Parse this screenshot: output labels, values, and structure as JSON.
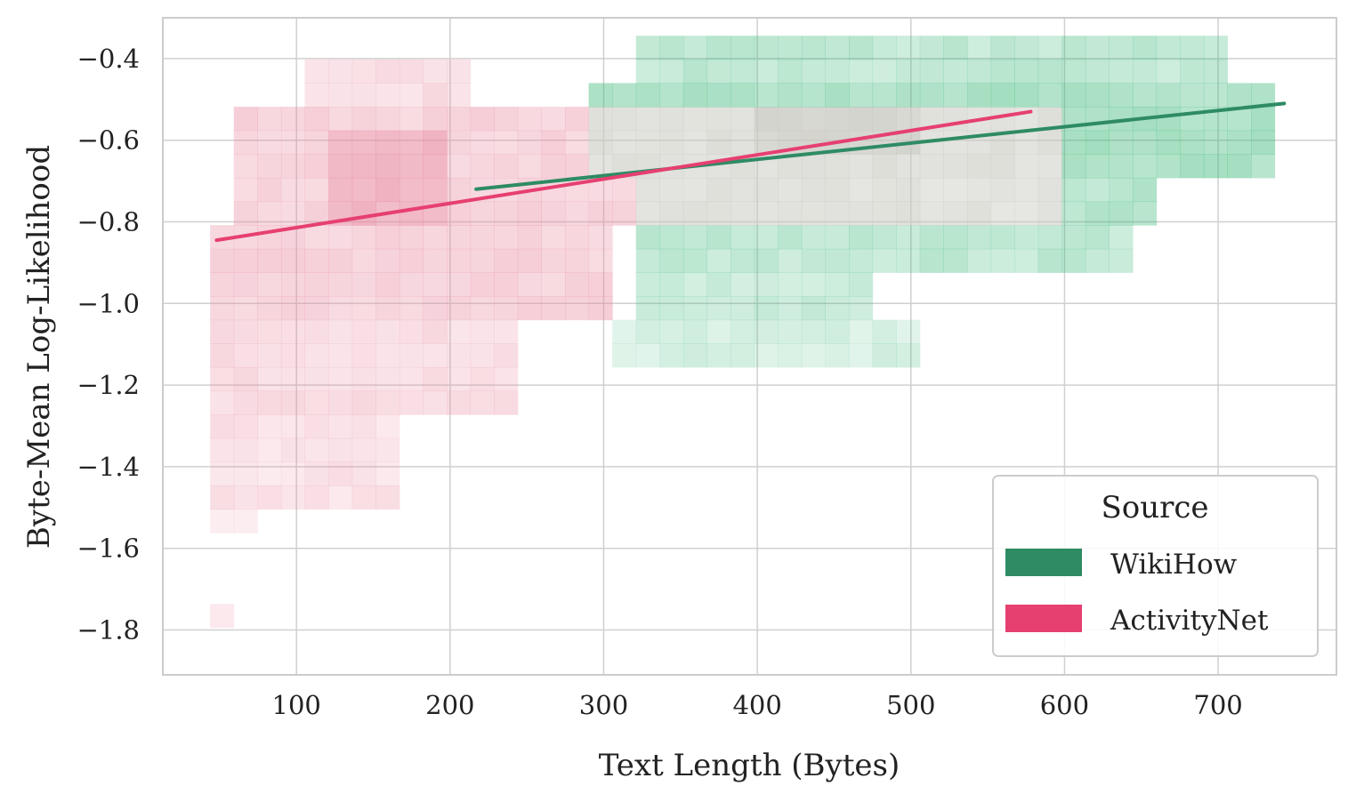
{
  "chart_data": {
    "type": "heatmap",
    "title": "",
    "xlabel": "Text Length (Bytes)",
    "ylabel": "Byte-Mean Log-Likelihood",
    "xlim": [
      13,
      777
    ],
    "ylim": [
      -1.91,
      -0.3
    ],
    "x_ticks": [
      100,
      200,
      300,
      400,
      500,
      600,
      700
    ],
    "y_ticks": [
      -0.4,
      -0.6,
      -0.8,
      -1.0,
      -1.2,
      -1.4,
      -1.6,
      -1.8
    ],
    "x_tick_labels": [
      "100",
      "200",
      "300",
      "400",
      "500",
      "600",
      "700"
    ],
    "y_tick_labels": [
      "−0.4",
      "−0.6",
      "−0.8",
      "−1.0",
      "−1.2",
      "−1.4",
      "−1.6",
      "−1.8"
    ],
    "grid": true,
    "bin_width_bytes": 15.4,
    "bin_height_loglik": 0.058,
    "legend": {
      "title": "Source",
      "placement": "lower-right",
      "entries": [
        "WikiHow",
        "ActivityNet"
      ]
    },
    "series": [
      {
        "name": "WikiHow",
        "color": "#2e8b63",
        "bin_color": "#3cb879",
        "x_range": [
          217,
          743
        ],
        "y_range": [
          -1.22,
          -0.35
        ],
        "regression": {
          "x": [
            217,
            743
          ],
          "y": [
            -0.72,
            -0.51
          ]
        },
        "density_regions": [
          {
            "x": [
              328,
              712
            ],
            "y": [
              -0.46,
              -0.35
            ],
            "level": 0.25
          },
          {
            "x": [
              296,
              743
            ],
            "y": [
              -0.72,
              -0.46
            ],
            "level": 0.35
          },
          {
            "x": [
              328,
              665
            ],
            "y": [
              -0.83,
              -0.72
            ],
            "level": 0.3
          },
          {
            "x": [
              328,
              650
            ],
            "y": [
              -0.95,
              -0.83
            ],
            "level": 0.25
          },
          {
            "x": [
              328,
              480
            ],
            "y": [
              -1.04,
              -0.95
            ],
            "level": 0.2
          },
          {
            "x": [
              312,
              510
            ],
            "y": [
              -1.16,
              -1.04
            ],
            "level": 0.15
          },
          {
            "x": [
              400,
              500
            ],
            "y": [
              -0.66,
              -0.52
            ],
            "level": 0.6
          }
        ]
      },
      {
        "name": "ActivityNet",
        "color": "#e64070",
        "bin_color": "#e88aa0",
        "x_range": [
          48,
          578
        ],
        "y_range": [
          -1.8,
          -0.4
        ],
        "regression": {
          "x": [
            48,
            578
          ],
          "y": [
            -0.845,
            -0.53
          ]
        },
        "density_regions": [
          {
            "x": [
              110,
              210
            ],
            "y": [
              -0.52,
              -0.4
            ],
            "level": 0.22
          },
          {
            "x": [
              64,
              600
            ],
            "y": [
              -0.81,
              -0.52
            ],
            "level": 0.3
          },
          {
            "x": [
              48,
              300
            ],
            "y": [
              -1.04,
              -0.81
            ],
            "level": 0.3
          },
          {
            "x": [
              48,
              250
            ],
            "y": [
              -1.28,
              -1.04
            ],
            "level": 0.22
          },
          {
            "x": [
              48,
              165
            ],
            "y": [
              -1.49,
              -1.28
            ],
            "level": 0.18
          },
          {
            "x": [
              48,
              80
            ],
            "y": [
              -1.57,
              -1.49
            ],
            "level": 0.15
          },
          {
            "x": [
              48,
              64
            ],
            "y": [
              -1.8,
              -1.74
            ],
            "level": 0.15
          },
          {
            "x": [
              120,
              200
            ],
            "y": [
              -0.78,
              -0.6
            ],
            "level": 0.55
          }
        ]
      }
    ],
    "overlap_color": "#c8c8c0"
  }
}
